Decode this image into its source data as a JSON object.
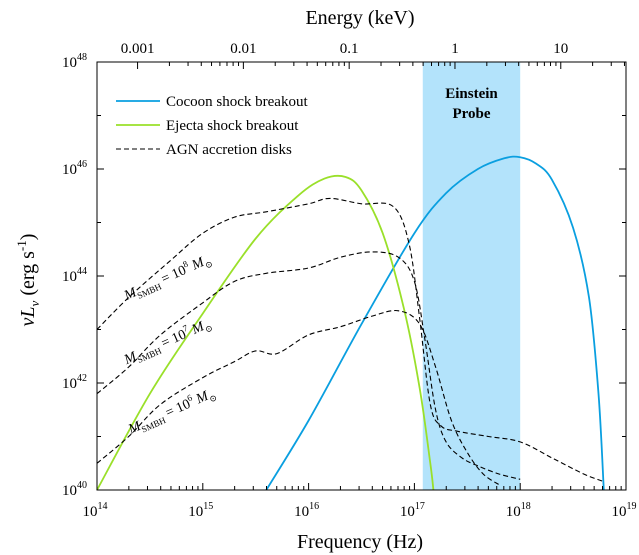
{
  "chart_data": {
    "type": "line",
    "x_axis": {
      "label": "Frequency (Hz)",
      "scale": "log",
      "range": [
        100000000000000.0,
        1e+19
      ],
      "ticks": [
        {
          "value": 100000000000000.0,
          "base": "10",
          "exp": "14"
        },
        {
          "value": 1000000000000000.0,
          "base": "10",
          "exp": "15"
        },
        {
          "value": 1e+16,
          "base": "10",
          "exp": "16"
        },
        {
          "value": 1e+17,
          "base": "10",
          "exp": "17"
        },
        {
          "value": 1e+18,
          "base": "10",
          "exp": "18"
        },
        {
          "value": 1e+19,
          "base": "10",
          "exp": "19"
        }
      ]
    },
    "top_axis": {
      "label": "Energy (keV)",
      "scale": "log",
      "ticks": [
        {
          "label": "0.001",
          "value": 0.001
        },
        {
          "label": "0.01",
          "value": 0.01
        },
        {
          "label": "0.1",
          "value": 0.1
        },
        {
          "label": "1",
          "value": 1
        },
        {
          "label": "10",
          "value": 10
        }
      ]
    },
    "y_axis": {
      "label_main": "νL",
      "label_sub": "ν",
      "label_unit": " (erg s",
      "label_exp": "-1",
      "label_close": ")",
      "scale": "log",
      "range": [
        1e+40,
        1e+48
      ],
      "ticks": [
        {
          "value": 1e+40,
          "base": "10",
          "exp": "40"
        },
        {
          "value": 1e+42,
          "base": "10",
          "exp": "42"
        },
        {
          "value": 1e+44,
          "base": "10",
          "exp": "44"
        },
        {
          "value": 1e+46,
          "base": "10",
          "exp": "46"
        },
        {
          "value": 1e+48,
          "base": "10",
          "exp": "48"
        }
      ]
    },
    "band": {
      "label_line1": "Einstein",
      "label_line2": "Probe",
      "x_range": [
        1.2e+17,
        1e+18
      ],
      "color": "#b3e3fb"
    },
    "legend": {
      "placement": "top-left",
      "entries": [
        {
          "label": "Cocoon shock breakout",
          "color": "#0a9fe0",
          "dash": "solid"
        },
        {
          "label": "Ejecta shock breakout",
          "color": "#9ae02a",
          "dash": "solid"
        },
        {
          "label": "AGN accretion disks",
          "color": "#000000",
          "dash": "dashed"
        }
      ]
    },
    "series": [
      {
        "name": "Cocoon shock breakout",
        "color": "#0a9fe0",
        "dash": "solid",
        "log_points": [
          [
            15.6,
            40.0
          ],
          [
            16.0,
            41.3
          ],
          [
            16.5,
            43.1
          ],
          [
            17.0,
            44.8
          ],
          [
            17.3,
            45.55
          ],
          [
            17.6,
            46.0
          ],
          [
            17.85,
            46.2
          ],
          [
            18.0,
            46.22
          ],
          [
            18.15,
            46.1
          ],
          [
            18.3,
            45.8
          ],
          [
            18.5,
            44.9
          ],
          [
            18.65,
            43.6
          ],
          [
            18.74,
            41.8
          ],
          [
            18.79,
            40.0
          ]
        ]
      },
      {
        "name": "Ejecta shock breakout",
        "color": "#9ae02a",
        "dash": "solid",
        "log_points": [
          [
            14.0,
            40.0
          ],
          [
            14.5,
            41.8
          ],
          [
            15.0,
            43.3
          ],
          [
            15.5,
            44.7
          ],
          [
            15.9,
            45.5
          ],
          [
            16.15,
            45.82
          ],
          [
            16.35,
            45.85
          ],
          [
            16.5,
            45.6
          ],
          [
            16.7,
            44.8
          ],
          [
            16.9,
            43.4
          ],
          [
            17.05,
            41.9
          ],
          [
            17.15,
            40.5
          ],
          [
            17.18,
            40.0
          ]
        ]
      },
      {
        "name": "AGN disk 1e8",
        "color": "#000000",
        "dash": "dashed",
        "log_points": [
          [
            14.0,
            43.0
          ],
          [
            14.3,
            43.6
          ],
          [
            14.7,
            44.3
          ],
          [
            15.0,
            44.8
          ],
          [
            15.3,
            45.1
          ],
          [
            15.6,
            45.2
          ],
          [
            16.0,
            45.35
          ],
          [
            16.2,
            45.45
          ],
          [
            16.5,
            45.35
          ],
          [
            16.8,
            45.3
          ],
          [
            16.95,
            44.6
          ],
          [
            17.05,
            43.2
          ],
          [
            17.15,
            41.6
          ],
          [
            17.25,
            41.2
          ],
          [
            17.4,
            41.1
          ],
          [
            17.7,
            41.0
          ],
          [
            18.0,
            40.9
          ],
          [
            18.3,
            40.6
          ],
          [
            18.6,
            40.3
          ],
          [
            18.8,
            40.15
          ]
        ]
      },
      {
        "name": "AGN disk 1e7",
        "color": "#000000",
        "dash": "dashed",
        "log_points": [
          [
            14.0,
            41.8
          ],
          [
            14.3,
            42.3
          ],
          [
            14.6,
            42.9
          ],
          [
            15.0,
            43.5
          ],
          [
            15.3,
            43.9
          ],
          [
            15.6,
            44.05
          ],
          [
            16.0,
            44.15
          ],
          [
            16.3,
            44.35
          ],
          [
            16.6,
            44.45
          ],
          [
            16.85,
            44.35
          ],
          [
            17.0,
            43.9
          ],
          [
            17.1,
            42.8
          ],
          [
            17.2,
            41.5
          ],
          [
            17.3,
            40.9
          ],
          [
            17.45,
            40.6
          ],
          [
            17.6,
            40.45
          ],
          [
            17.8,
            40.3
          ],
          [
            18.0,
            40.2
          ]
        ]
      },
      {
        "name": "AGN disk 1e6",
        "color": "#000000",
        "dash": "dashed",
        "log_points": [
          [
            14.0,
            40.5
          ],
          [
            14.3,
            41.0
          ],
          [
            14.6,
            41.6
          ],
          [
            15.0,
            42.1
          ],
          [
            15.3,
            42.4
          ],
          [
            15.5,
            42.6
          ],
          [
            15.7,
            42.55
          ],
          [
            16.0,
            42.9
          ],
          [
            16.3,
            43.05
          ],
          [
            16.6,
            43.25
          ],
          [
            16.85,
            43.35
          ],
          [
            17.05,
            43.1
          ],
          [
            17.2,
            42.3
          ],
          [
            17.35,
            41.3
          ],
          [
            17.5,
            40.7
          ],
          [
            17.65,
            40.3
          ],
          [
            17.8,
            40.1
          ]
        ]
      }
    ],
    "annotations": [
      {
        "prefix": "M",
        "sub": "SMBH",
        "middle": " = 10",
        "exp": "8",
        "unit": " M",
        "unit_sub": "⊙",
        "at_log": [
          14.28,
          43.55
        ],
        "angle": -24
      },
      {
        "prefix": "M",
        "sub": "SMBH",
        "middle": " = 10",
        "exp": "7",
        "unit": " M",
        "unit_sub": "⊙",
        "at_log": [
          14.28,
          42.35
        ],
        "angle": -24
      },
      {
        "prefix": "M",
        "sub": "SMBH",
        "middle": " = 10",
        "exp": "6",
        "unit": " M",
        "unit_sub": "⊙",
        "at_log": [
          14.32,
          41.05
        ],
        "angle": -24
      }
    ]
  }
}
